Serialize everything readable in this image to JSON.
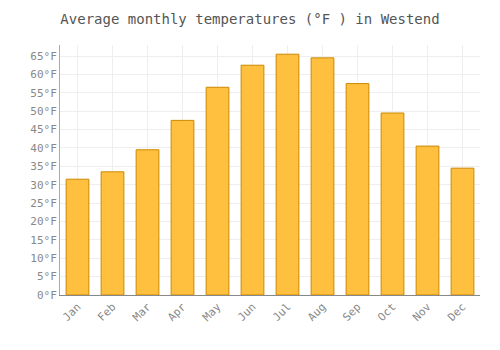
{
  "chart_data": {
    "type": "bar",
    "title": "Average monthly temperatures (°F ) in Westend",
    "categories": [
      "Jan",
      "Feb",
      "Mar",
      "Apr",
      "May",
      "Jun",
      "Jul",
      "Aug",
      "Sep",
      "Oct",
      "Nov",
      "Dec"
    ],
    "values": [
      31.5,
      33.5,
      39.5,
      47.5,
      56.5,
      62.5,
      65.5,
      64.5,
      57.5,
      49.5,
      40.5,
      34.5
    ],
    "color": "#FFC040",
    "ylim": [
      0,
      68
    ],
    "yticks": [
      {
        "value": 0,
        "label": "0°F"
      },
      {
        "value": 5,
        "label": "5°F"
      },
      {
        "value": 10,
        "label": "10°F"
      },
      {
        "value": 15,
        "label": "15°F"
      },
      {
        "value": 20,
        "label": "20°F"
      },
      {
        "value": 25,
        "label": "25°F"
      },
      {
        "value": 30,
        "label": "30°F"
      },
      {
        "value": 35,
        "label": "35°F"
      },
      {
        "value": 40,
        "label": "40°F"
      },
      {
        "value": 45,
        "label": "45°F"
      },
      {
        "value": 50,
        "label": "50°F"
      },
      {
        "value": 55,
        "label": "55°F"
      },
      {
        "value": 60,
        "label": "60°F"
      },
      {
        "value": 65,
        "label": "65°F"
      }
    ],
    "grid": true
  }
}
